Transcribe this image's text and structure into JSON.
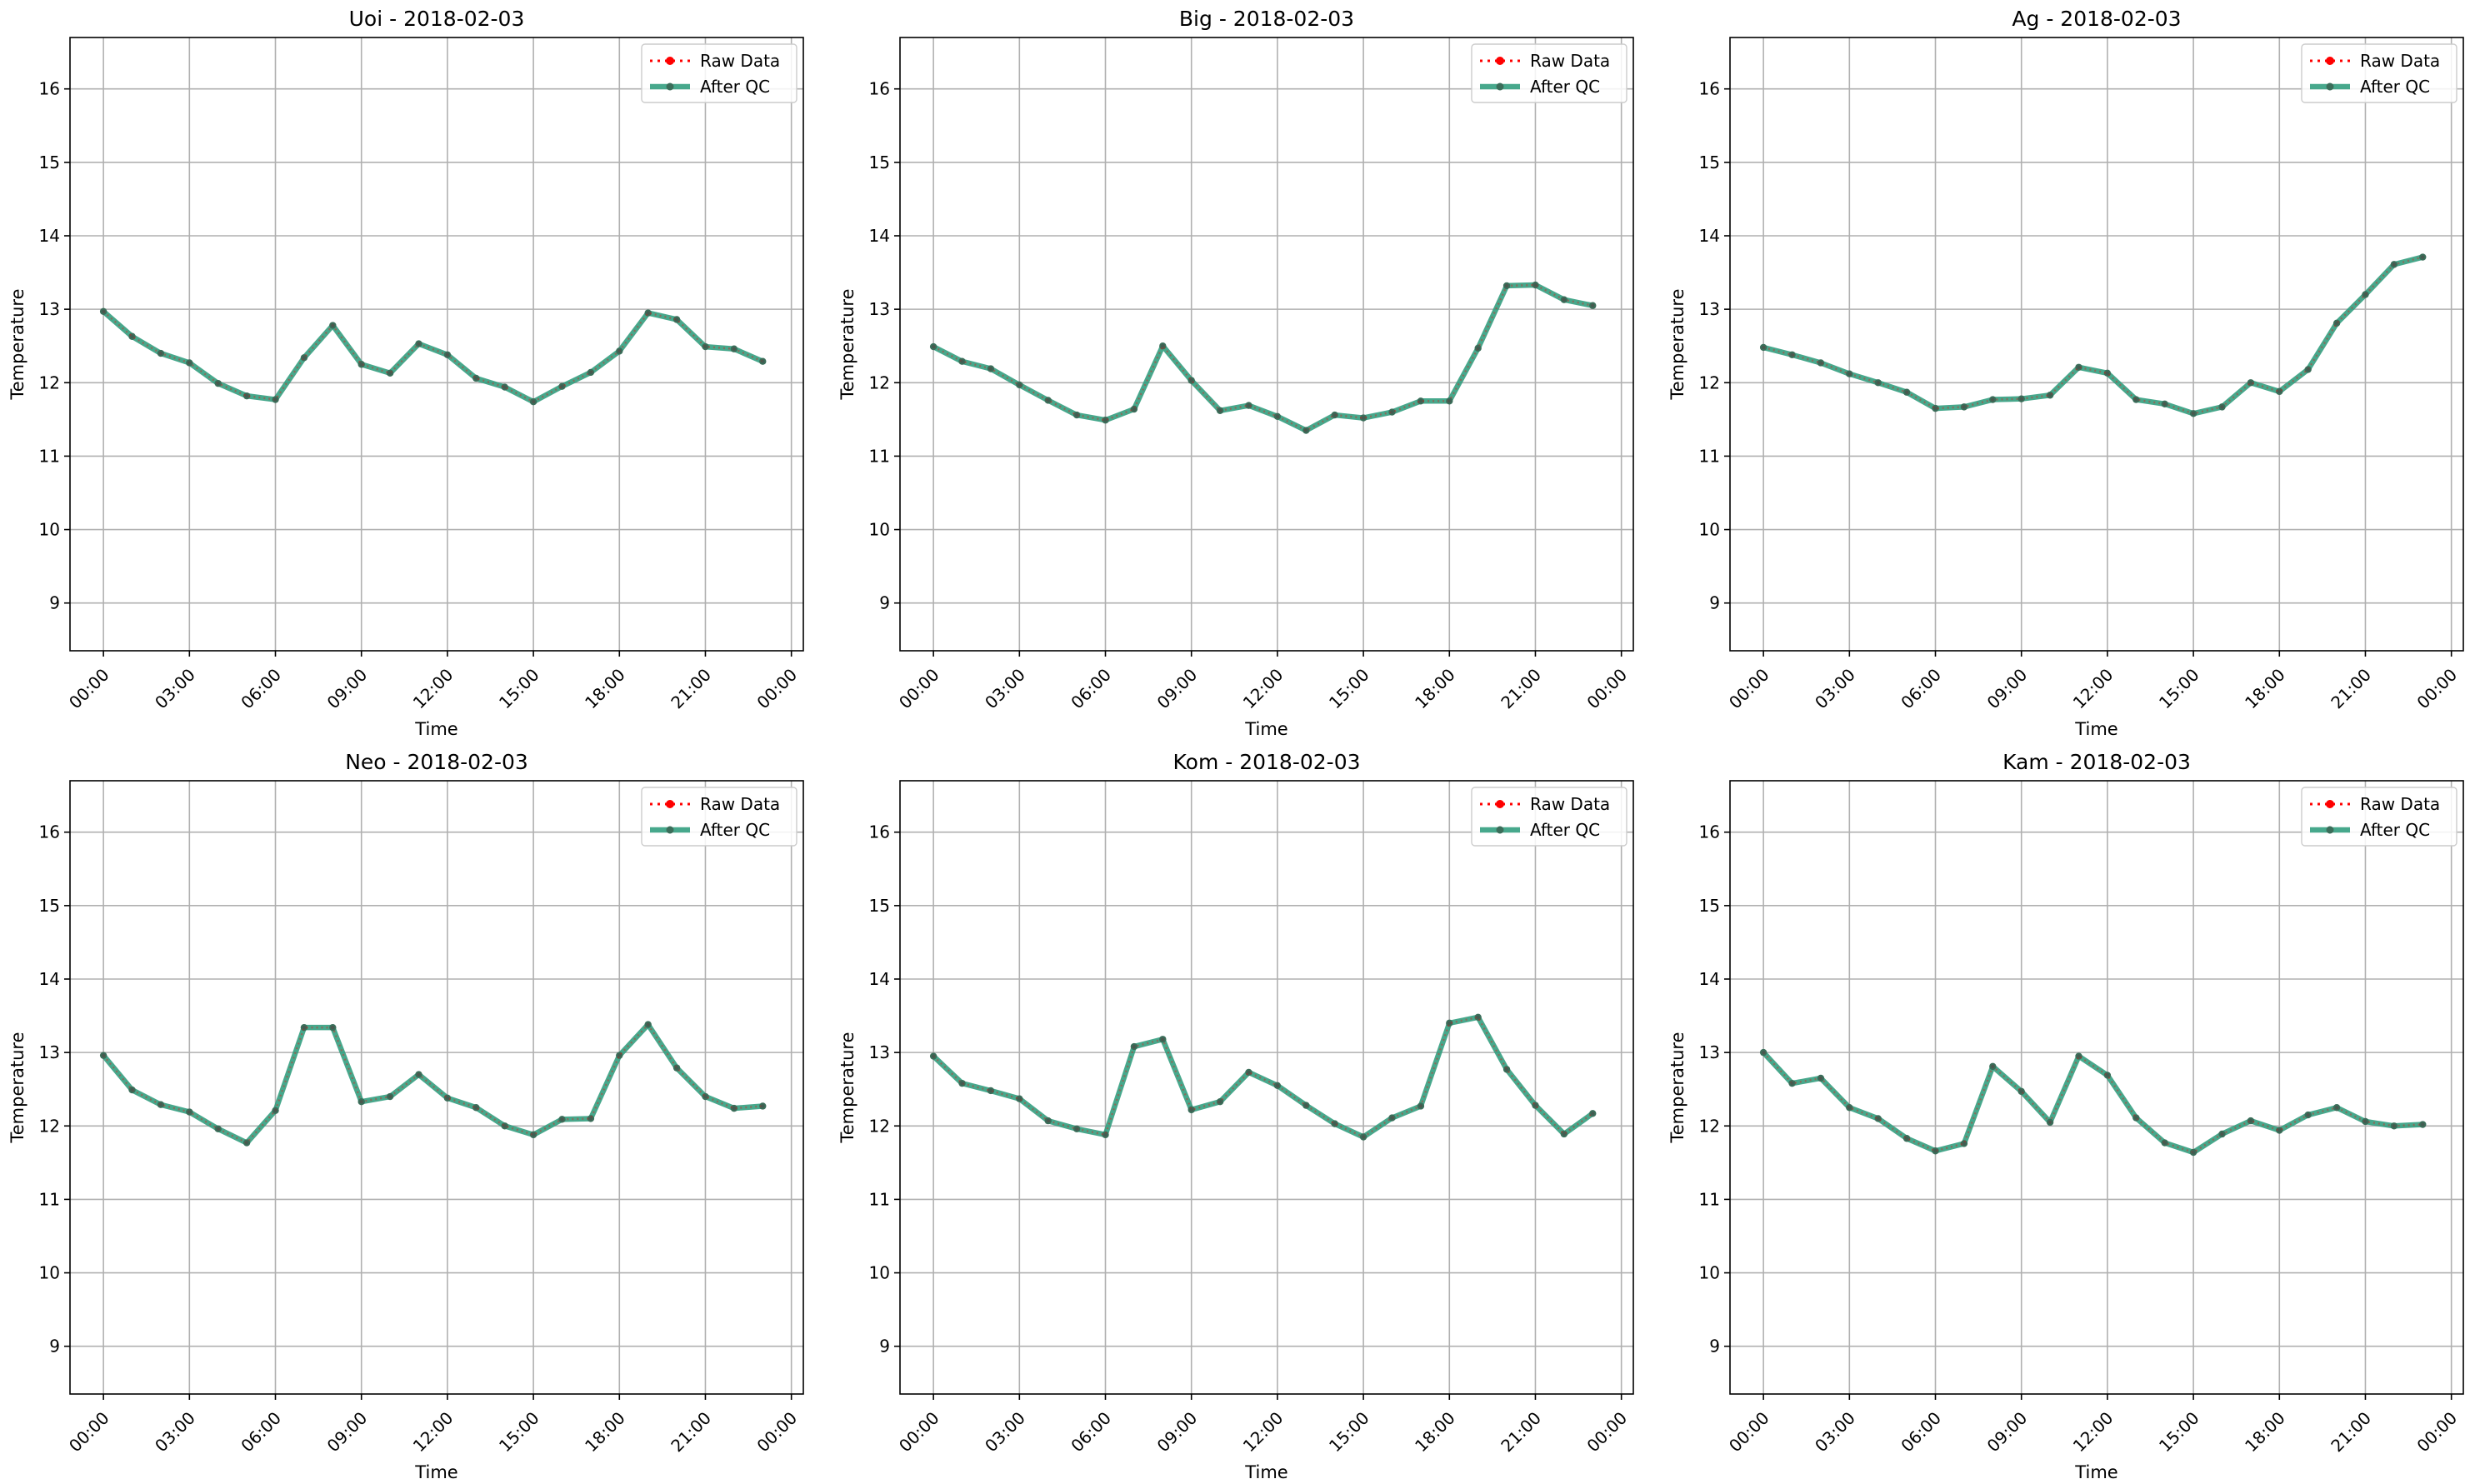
{
  "colors": {
    "raw": "#ff0000",
    "qc": "#2e9c7c",
    "qc_marker": "#3b6e5a",
    "grid": "#b0b0b0",
    "axes": "#000000"
  },
  "chart_data": [
    {
      "type": "line",
      "title": "Uoi - 2018-02-03",
      "xlabel": "Time",
      "ylabel": "Temperature",
      "ylim": [
        8.35,
        16.7
      ],
      "yticks": [
        9,
        10,
        11,
        12,
        13,
        14,
        15,
        16
      ],
      "xlim": [
        "2018-02-02 22:50",
        "2018-02-04 00:25"
      ],
      "xticks": [
        "00:00",
        "03:00",
        "06:00",
        "09:00",
        "12:00",
        "15:00",
        "18:00",
        "21:00",
        "00:00"
      ],
      "grid": true,
      "legend": "top-right",
      "series": [
        {
          "name": "Raw Data",
          "values": [
            12.97,
            12.63,
            12.4,
            12.27,
            11.99,
            11.82,
            11.77,
            12.34,
            12.78,
            12.25,
            12.13,
            12.53,
            12.38,
            12.06,
            11.94,
            11.74,
            11.95,
            12.14,
            12.43,
            12.95,
            12.86,
            12.49,
            12.46,
            12.29
          ]
        },
        {
          "name": "After QC",
          "values": [
            12.97,
            12.63,
            12.4,
            12.27,
            11.99,
            11.82,
            11.77,
            12.34,
            12.78,
            12.25,
            12.13,
            12.53,
            12.38,
            12.06,
            11.94,
            11.74,
            11.95,
            12.14,
            12.43,
            12.95,
            12.86,
            12.49,
            12.46,
            12.29
          ]
        }
      ]
    },
    {
      "type": "line",
      "title": "Big - 2018-02-03",
      "xlabel": "Time",
      "ylabel": "Temperature",
      "ylim": [
        8.35,
        16.7
      ],
      "yticks": [
        9,
        10,
        11,
        12,
        13,
        14,
        15,
        16
      ],
      "xlim": [
        "2018-02-02 22:50",
        "2018-02-04 00:25"
      ],
      "xticks": [
        "00:00",
        "03:00",
        "06:00",
        "09:00",
        "12:00",
        "15:00",
        "18:00",
        "21:00",
        "00:00"
      ],
      "grid": true,
      "legend": "top-right",
      "series": [
        {
          "name": "Raw Data",
          "values": [
            12.49,
            12.29,
            12.19,
            11.97,
            11.76,
            11.56,
            11.49,
            11.64,
            12.5,
            12.03,
            11.62,
            11.69,
            11.54,
            11.35,
            11.56,
            11.52,
            11.6,
            11.75,
            11.75,
            12.47,
            13.32,
            13.33,
            13.13,
            13.05
          ]
        },
        {
          "name": "After QC",
          "values": [
            12.49,
            12.29,
            12.19,
            11.97,
            11.76,
            11.56,
            11.49,
            11.64,
            12.5,
            12.03,
            11.62,
            11.69,
            11.54,
            11.35,
            11.56,
            11.52,
            11.6,
            11.75,
            11.75,
            12.47,
            13.32,
            13.33,
            13.13,
            13.05
          ]
        }
      ]
    },
    {
      "type": "line",
      "title": "Ag - 2018-02-03",
      "xlabel": "Time",
      "ylabel": "Temperature",
      "ylim": [
        8.35,
        16.7
      ],
      "yticks": [
        9,
        10,
        11,
        12,
        13,
        14,
        15,
        16
      ],
      "xlim": [
        "2018-02-02 22:50",
        "2018-02-04 00:25"
      ],
      "xticks": [
        "00:00",
        "03:00",
        "06:00",
        "09:00",
        "12:00",
        "15:00",
        "18:00",
        "21:00",
        "00:00"
      ],
      "grid": true,
      "legend": "top-right",
      "series": [
        {
          "name": "Raw Data",
          "values": [
            12.48,
            12.38,
            12.27,
            12.12,
            12.0,
            11.87,
            11.65,
            11.67,
            11.77,
            11.78,
            11.83,
            12.21,
            12.13,
            11.77,
            11.71,
            11.58,
            11.67,
            12.0,
            11.88,
            12.18,
            12.81,
            13.2,
            13.61,
            13.71
          ]
        },
        {
          "name": "After QC",
          "values": [
            12.48,
            12.38,
            12.27,
            12.12,
            12.0,
            11.87,
            11.65,
            11.67,
            11.77,
            11.78,
            11.83,
            12.21,
            12.13,
            11.77,
            11.71,
            11.58,
            11.67,
            12.0,
            11.88,
            12.18,
            12.81,
            13.2,
            13.61,
            13.71
          ]
        }
      ]
    },
    {
      "type": "line",
      "title": "Neo - 2018-02-03",
      "xlabel": "Time",
      "ylabel": "Temperature",
      "ylim": [
        8.35,
        16.7
      ],
      "yticks": [
        9,
        10,
        11,
        12,
        13,
        14,
        15,
        16
      ],
      "xlim": [
        "2018-02-02 22:50",
        "2018-02-04 00:25"
      ],
      "xticks": [
        "00:00",
        "03:00",
        "06:00",
        "09:00",
        "12:00",
        "15:00",
        "18:00",
        "21:00",
        "00:00"
      ],
      "grid": true,
      "legend": "top-right",
      "series": [
        {
          "name": "Raw Data",
          "values": [
            12.96,
            12.49,
            12.29,
            12.19,
            11.96,
            11.77,
            12.21,
            13.34,
            13.34,
            12.33,
            12.4,
            12.7,
            12.38,
            12.25,
            12.0,
            11.88,
            12.09,
            12.1,
            12.96,
            13.38,
            12.79,
            12.4,
            12.24,
            12.27
          ]
        },
        {
          "name": "After QC",
          "values": [
            12.96,
            12.49,
            12.29,
            12.19,
            11.96,
            11.77,
            12.21,
            13.34,
            13.34,
            12.33,
            12.4,
            12.7,
            12.38,
            12.25,
            12.0,
            11.88,
            12.09,
            12.1,
            12.96,
            13.38,
            12.79,
            12.4,
            12.24,
            12.27
          ]
        }
      ]
    },
    {
      "type": "line",
      "title": "Kom - 2018-02-03",
      "xlabel": "Time",
      "ylabel": "Temperature",
      "ylim": [
        8.35,
        16.7
      ],
      "yticks": [
        9,
        10,
        11,
        12,
        13,
        14,
        15,
        16
      ],
      "xlim": [
        "2018-02-02 22:50",
        "2018-02-04 00:25"
      ],
      "xticks": [
        "00:00",
        "03:00",
        "06:00",
        "09:00",
        "12:00",
        "15:00",
        "18:00",
        "21:00",
        "00:00"
      ],
      "grid": true,
      "legend": "top-right",
      "series": [
        {
          "name": "Raw Data",
          "values": [
            12.95,
            12.58,
            12.48,
            12.37,
            12.07,
            11.96,
            11.88,
            13.08,
            13.18,
            12.22,
            12.33,
            12.73,
            12.55,
            12.28,
            12.03,
            11.85,
            12.11,
            12.27,
            13.4,
            13.48,
            12.77,
            12.28,
            11.89,
            12.17
          ]
        },
        {
          "name": "After QC",
          "values": [
            12.95,
            12.58,
            12.48,
            12.37,
            12.07,
            11.96,
            11.88,
            13.08,
            13.18,
            12.22,
            12.33,
            12.73,
            12.55,
            12.28,
            12.03,
            11.85,
            12.11,
            12.27,
            13.4,
            13.48,
            12.77,
            12.28,
            11.89,
            12.17
          ]
        }
      ]
    },
    {
      "type": "line",
      "title": "Kam - 2018-02-03",
      "xlabel": "Time",
      "ylabel": "Temperature",
      "ylim": [
        8.35,
        16.7
      ],
      "yticks": [
        9,
        10,
        11,
        12,
        13,
        14,
        15,
        16
      ],
      "xlim": [
        "2018-02-02 22:50",
        "2018-02-04 00:25"
      ],
      "xticks": [
        "00:00",
        "03:00",
        "06:00",
        "09:00",
        "12:00",
        "15:00",
        "18:00",
        "21:00",
        "00:00"
      ],
      "grid": true,
      "legend": "top-right",
      "series": [
        {
          "name": "Raw Data",
          "values": [
            13.0,
            12.58,
            12.65,
            12.25,
            12.1,
            11.83,
            11.66,
            11.76,
            12.81,
            12.47,
            12.05,
            12.95,
            12.69,
            12.11,
            11.77,
            11.64,
            11.89,
            12.07,
            11.94,
            12.15,
            12.25,
            12.06,
            12.0,
            12.02
          ]
        },
        {
          "name": "After QC",
          "values": [
            13.0,
            12.58,
            12.65,
            12.25,
            12.1,
            11.83,
            11.66,
            11.76,
            12.81,
            12.47,
            12.05,
            12.95,
            12.69,
            12.11,
            11.77,
            11.64,
            11.89,
            12.07,
            11.94,
            12.15,
            12.25,
            12.06,
            12.0,
            12.02
          ]
        }
      ]
    }
  ]
}
